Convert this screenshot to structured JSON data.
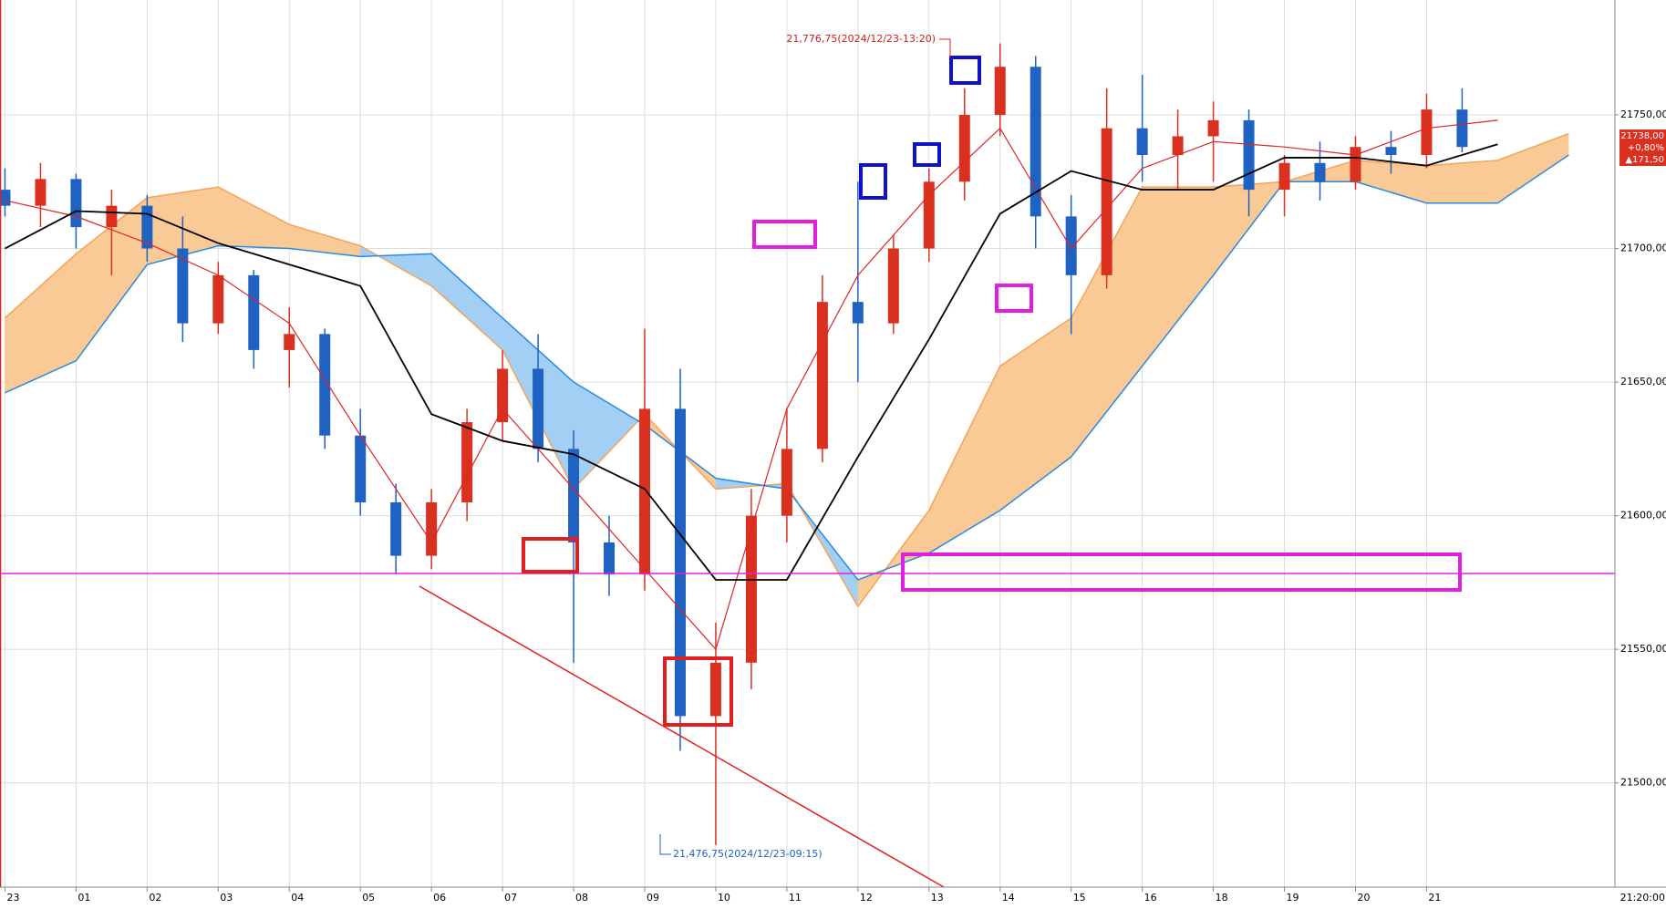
{
  "chart_data": {
    "type": "candlestick",
    "x": [
      0,
      0.5,
      1,
      1.5,
      2,
      2.5,
      3,
      3.5,
      4,
      4.5,
      5,
      5.5,
      6,
      6.5,
      7,
      7.5,
      8,
      8.5,
      9,
      9.5,
      10,
      10.5,
      11,
      11.5,
      12,
      12.5,
      13,
      13.5,
      14,
      14.5,
      15,
      15.5,
      16,
      16.5,
      17,
      17.5,
      18,
      18.5,
      19,
      19.5,
      20,
      20.5
    ],
    "candles": [
      [
        21722,
        21730,
        21712,
        21716
      ],
      [
        21716,
        21732,
        21708,
        21726
      ],
      [
        21726,
        21728,
        21700,
        21708
      ],
      [
        21708,
        21722,
        21690,
        21716
      ],
      [
        21716,
        21720,
        21695,
        21700
      ],
      [
        21700,
        21712,
        21665,
        21672
      ],
      [
        21672,
        21695,
        21668,
        21690
      ],
      [
        21690,
        21692,
        21655,
        21662
      ],
      [
        21662,
        21678,
        21648,
        21668
      ],
      [
        21668,
        21670,
        21625,
        21630
      ],
      [
        21630,
        21640,
        21600,
        21605
      ],
      [
        21605,
        21612,
        21578,
        21585
      ],
      [
        21585,
        21610,
        21580,
        21605
      ],
      [
        21605,
        21640,
        21598,
        21635
      ],
      [
        21635,
        21662,
        21628,
        21655
      ],
      [
        21655,
        21668,
        21620,
        21625
      ],
      [
        21625,
        21632,
        21545,
        21590
      ],
      [
        21590,
        21600,
        21570,
        21578
      ],
      [
        21578,
        21670,
        21572,
        21640
      ],
      [
        21640,
        21655,
        21512,
        21525
      ],
      [
        21525,
        21560,
        21476.75,
        21545
      ],
      [
        21545,
        21610,
        21535,
        21600
      ],
      [
        21600,
        21640,
        21590,
        21625
      ],
      [
        21625,
        21690,
        21620,
        21680
      ],
      [
        21680,
        21725,
        21650,
        21672
      ],
      [
        21672,
        21705,
        21668,
        21700
      ],
      [
        21700,
        21730,
        21695,
        21725
      ],
      [
        21725,
        21760,
        21718,
        21750
      ],
      [
        21750,
        21776.75,
        21742,
        21768
      ],
      [
        21768,
        21772,
        21700,
        21712
      ],
      [
        21712,
        21720,
        21668,
        21690
      ],
      [
        21690,
        21760,
        21685,
        21745
      ],
      [
        21745,
        21765,
        21725,
        21735
      ],
      [
        21735,
        21752,
        21722,
        21742
      ],
      [
        21742,
        21755,
        21725,
        21748
      ],
      [
        21748,
        21752,
        21712,
        21722
      ],
      [
        21722,
        21735,
        21712,
        21732
      ],
      [
        21732,
        21740,
        21718,
        21725
      ],
      [
        21725,
        21742,
        21722,
        21738
      ],
      [
        21738,
        21744,
        21728,
        21735
      ],
      [
        21735,
        21758,
        21730,
        21752
      ],
      [
        21752,
        21760,
        21736,
        21738
      ]
    ],
    "up_color": "#d9301f",
    "down_color": "#1f62c2",
    "line_x": [
      0,
      1,
      2,
      3,
      4,
      5,
      6,
      7,
      8,
      9,
      10,
      11,
      12,
      13,
      14,
      15,
      16,
      17,
      18,
      19,
      20,
      21,
      22
    ],
    "lines": [
      {
        "color": "#e02424",
        "values": [
          21718,
          21712,
          21702,
          21690,
          21672,
          21630,
          21590,
          21640,
          21610,
          21580,
          21550,
          21640,
          21690,
          21720,
          21745,
          21700,
          21730,
          21740,
          21738,
          21735,
          21745,
          21748,
          null
        ]
      },
      {
        "color": "#000000",
        "values": [
          21700,
          21714,
          21713,
          21702,
          21694,
          21686,
          21638,
          21628,
          21623,
          21610,
          21576,
          21576,
          21622,
          21666,
          21713,
          21729,
          21722,
          21722,
          21734,
          21734,
          21731,
          21739,
          null
        ]
      }
    ],
    "cloud": {
      "span_a": [
        21674,
        21698,
        21719,
        21723,
        21709,
        21701,
        21686,
        21662,
        21610,
        21638,
        21610,
        21612,
        21566,
        21602,
        21656,
        21674,
        21723,
        21723,
        21725,
        21733,
        21731,
        21733,
        21743
      ],
      "span_b": [
        21646,
        21658,
        21694,
        21701,
        21700,
        21697,
        21698,
        21674,
        21650,
        21634,
        21614,
        21610,
        21576,
        21586,
        21602,
        21622,
        21656,
        21690,
        21725,
        21725,
        21717,
        21717,
        21735
      ],
      "up_fill": "#f9c996",
      "down_fill": "#a3cff5",
      "a_color": "#f4a459",
      "b_color": "#2a8ae0"
    },
    "xlim": [
      -0.07,
      22.65
    ],
    "ylim": [
      21461,
      21793
    ],
    "yticks": [
      {
        "value": 21500,
        "label": "21500,00"
      },
      {
        "value": 21550,
        "label": "21550,00"
      },
      {
        "value": 21600,
        "label": "21600,00"
      },
      {
        "value": 21650,
        "label": "21650,00"
      },
      {
        "value": 21700,
        "label": "21700,00"
      },
      {
        "value": 21750,
        "label": "21750,00"
      }
    ],
    "xticks": [
      {
        "value": 0,
        "label": "23"
      },
      {
        "value": 1,
        "label": "01"
      },
      {
        "value": 2,
        "label": "02"
      },
      {
        "value": 3,
        "label": "03"
      },
      {
        "value": 4,
        "label": "04"
      },
      {
        "value": 5,
        "label": "05"
      },
      {
        "value": 6,
        "label": "06"
      },
      {
        "value": 7,
        "label": "07"
      },
      {
        "value": 8,
        "label": "08"
      },
      {
        "value": 9,
        "label": "09"
      },
      {
        "value": 10,
        "label": "10"
      },
      {
        "value": 11,
        "label": "11"
      },
      {
        "value": 12,
        "label": "12"
      },
      {
        "value": 13,
        "label": "13"
      },
      {
        "value": 14,
        "label": "14"
      },
      {
        "value": 15,
        "label": "15"
      },
      {
        "value": 16,
        "label": "16"
      },
      {
        "value": 17,
        "label": "18"
      },
      {
        "value": 18,
        "label": "19"
      },
      {
        "value": 19,
        "label": "20"
      },
      {
        "value": 20,
        "label": "21"
      }
    ],
    "x_end_label": "21:20:00",
    "high_label": "21,776,75(2024/12/23-13:20)",
    "low_label": "21,476,75(2024/12/23-09:15)",
    "price_box": [
      "21738,00",
      "+0,80%",
      "▲171,50"
    ],
    "grid": true
  }
}
